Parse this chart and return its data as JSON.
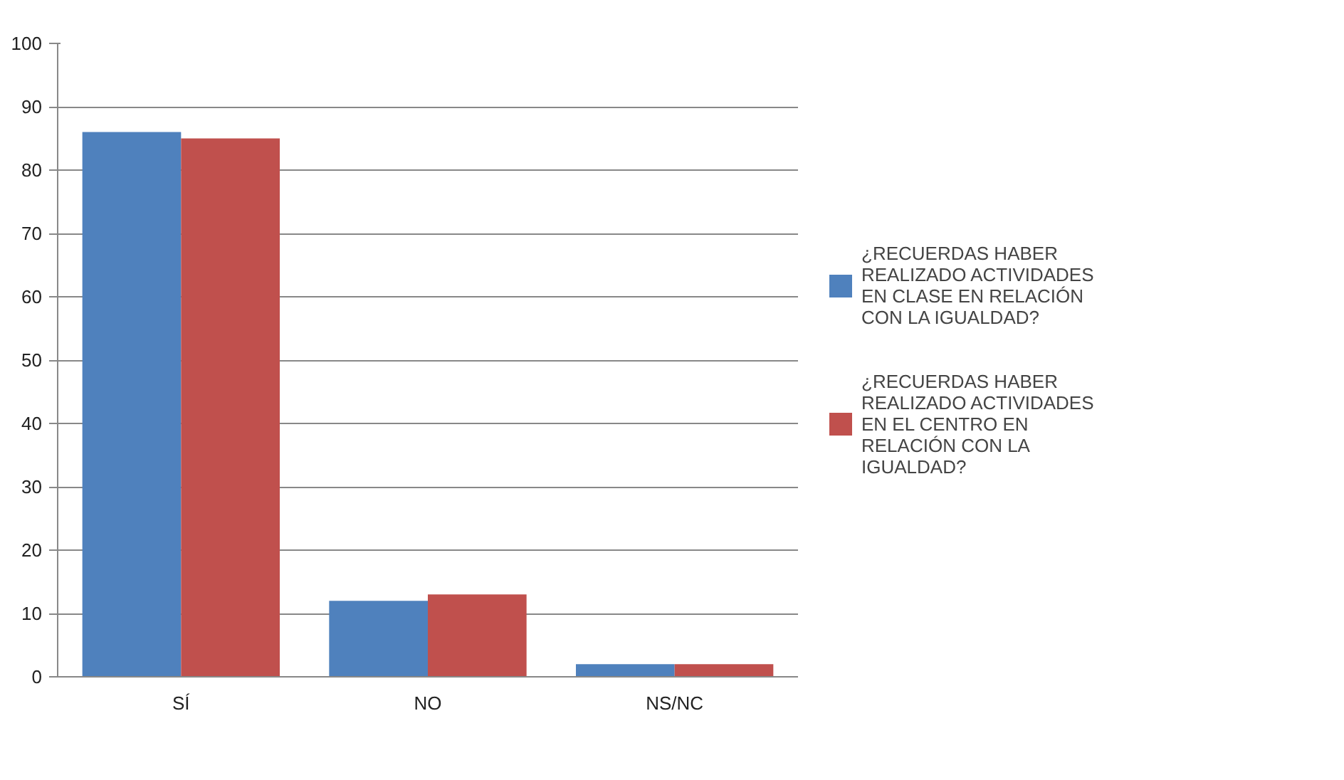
{
  "chart_data": {
    "type": "bar",
    "categories": [
      "SÍ",
      "NO",
      "NS/NC"
    ],
    "series": [
      {
        "name": "¿RECUERDAS HABER REALIZADO ACTIVIDADES EN CLASE EN RELACIÓN CON LA IGUALDAD?",
        "color": "#4f81bd",
        "values": [
          86,
          12,
          2
        ]
      },
      {
        "name": "¿RECUERDAS HABER REALIZADO ACTIVIDADES EN EL CENTRO EN RELACIÓN CON LA IGUALDAD?",
        "color": "#c0504d",
        "values": [
          85,
          13,
          2
        ]
      }
    ],
    "ylim": [
      0,
      100
    ],
    "yticks": [
      0,
      10,
      20,
      30,
      40,
      50,
      60,
      70,
      80,
      90,
      100
    ],
    "grid": "y",
    "legend": "right"
  }
}
